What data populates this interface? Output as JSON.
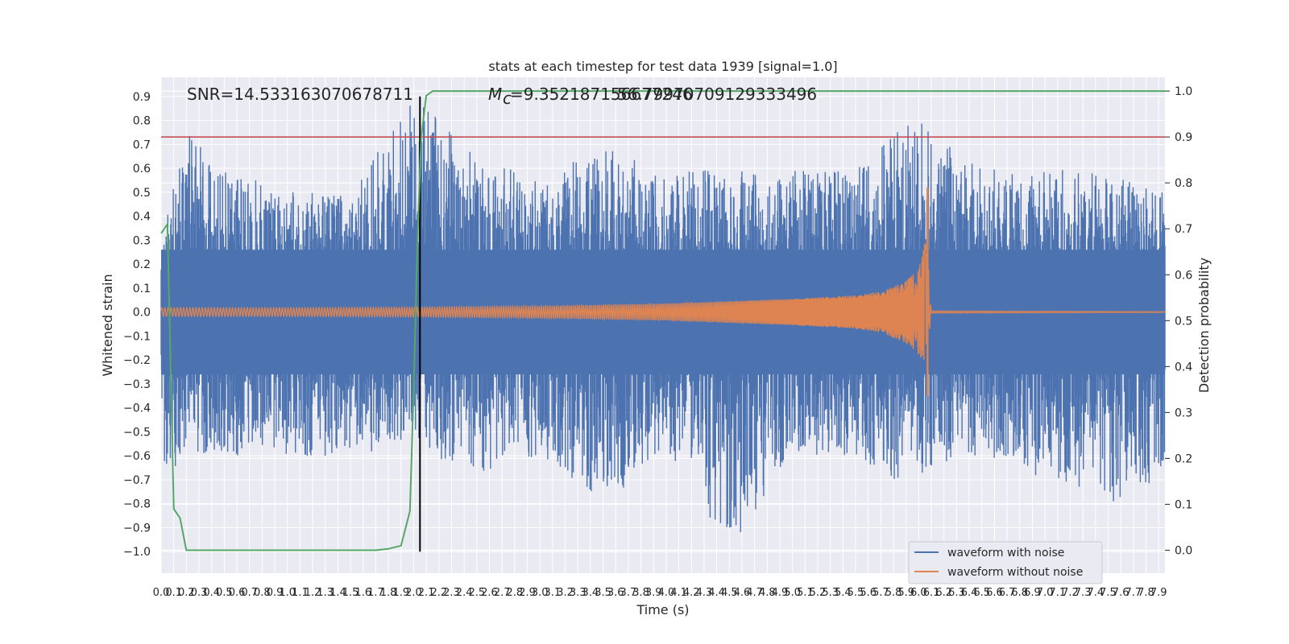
{
  "chart_data": {
    "type": "line",
    "title": "stats at each timestep for test data 1939 [signal=1.0]",
    "xlabel": "Time (s)",
    "ylabel": "Whitened strain",
    "y2label": "Detection probability",
    "xlim": [
      0.0,
      7.95
    ],
    "ylim": [
      -1.09,
      0.98
    ],
    "y2lim": [
      -0.05,
      1.03
    ],
    "xticks": [
      "0.0",
      "0.1",
      "0.2",
      "0.3",
      "0.4",
      "0.5",
      "0.6",
      "0.7",
      "0.8",
      "0.9",
      "1.0",
      "1.1",
      "1.2",
      "1.3",
      "1.4",
      "1.5",
      "1.6",
      "1.7",
      "1.8",
      "1.9",
      "2.0",
      "2.1",
      "2.2",
      "2.3",
      "2.4",
      "2.5",
      "2.6",
      "2.7",
      "2.8",
      "2.9",
      "3.0",
      "3.1",
      "3.2",
      "3.3",
      "3.4",
      "3.5",
      "3.6",
      "3.7",
      "3.8",
      "3.9",
      "4.0",
      "4.1",
      "4.2",
      "4.3",
      "4.4",
      "4.5",
      "4.6",
      "4.7",
      "4.8",
      "4.9",
      "5.0",
      "5.1",
      "5.2",
      "5.3",
      "5.4",
      "5.5",
      "5.6",
      "5.7",
      "5.8",
      "5.9",
      "6.0",
      "6.1",
      "6.2",
      "6.3",
      "6.4",
      "6.5",
      "6.6",
      "6.7",
      "6.8",
      "6.9",
      "7.0",
      "7.1",
      "7.2",
      "7.3",
      "7.4",
      "7.5",
      "7.6",
      "7.7",
      "7.8",
      "7.9"
    ],
    "yticks": [
      "0.9",
      "0.8",
      "0.7",
      "0.6",
      "0.5",
      "0.4",
      "0.3",
      "0.2",
      "0.1",
      "0.0",
      "−0.1",
      "−0.2",
      "−0.3",
      "−0.4",
      "−0.5",
      "−0.6",
      "−0.7",
      "−0.8",
      "−0.9",
      "−1.0"
    ],
    "ytick_values": [
      0.9,
      0.8,
      0.7,
      0.6,
      0.5,
      0.4,
      0.3,
      0.2,
      0.1,
      0.0,
      -0.1,
      -0.2,
      -0.3,
      -0.4,
      -0.5,
      -0.6,
      -0.7,
      -0.8,
      -0.9,
      -1.0
    ],
    "y2ticks": [
      "1.0",
      "0.9",
      "0.8",
      "0.7",
      "0.6",
      "0.5",
      "0.4",
      "0.3",
      "0.2",
      "0.1",
      "0.0"
    ],
    "y2tick_values": [
      1.0,
      0.9,
      0.8,
      0.7,
      0.6,
      0.5,
      0.4,
      0.3,
      0.2,
      0.1,
      0.0
    ],
    "grid": true,
    "legend_position": "lower-right",
    "annotations": {
      "snr": "SNR=14.533163070678711",
      "mc": "=9.352187156677246",
      "mc_symbol": "M",
      "mc_sub": "c",
      "overlap": "56.79970709129333496"
    },
    "threshold": {
      "y2": 0.9,
      "color": "#c44e52"
    },
    "marker_line": {
      "x": 2.05,
      "y": [
        -1.0,
        0.9
      ],
      "color": "#000000"
    },
    "series": [
      {
        "name": "waveform with noise",
        "color": "#4c72b0",
        "envelope": {
          "x": [
            0.0,
            0.2,
            0.5,
            1.0,
            1.5,
            2.0,
            2.5,
            3.0,
            3.5,
            4.0,
            4.5,
            5.0,
            5.5,
            5.8,
            6.0,
            6.1,
            6.5,
            7.0,
            7.5,
            7.95
          ],
          "upper": [
            0.35,
            0.75,
            0.6,
            0.5,
            0.5,
            0.9,
            0.65,
            0.55,
            0.7,
            0.6,
            0.6,
            0.6,
            0.6,
            0.75,
            0.8,
            0.75,
            0.6,
            0.6,
            0.6,
            0.5
          ],
          "lower": [
            -0.7,
            -0.6,
            -0.6,
            -0.6,
            -0.6,
            -0.55,
            -0.7,
            -0.6,
            -0.8,
            -0.6,
            -1.0,
            -0.6,
            -0.6,
            -0.7,
            -0.7,
            -0.65,
            -0.6,
            -0.7,
            -0.8,
            -0.7
          ]
        }
      },
      {
        "name": "waveform without noise",
        "color": "#dd8452",
        "envelope": {
          "x": [
            0.0,
            1.0,
            2.0,
            3.0,
            4.0,
            4.5,
            5.0,
            5.5,
            5.7,
            5.9,
            6.0,
            6.05,
            6.1,
            7.95
          ],
          "amp": [
            0.018,
            0.018,
            0.02,
            0.025,
            0.035,
            0.045,
            0.055,
            0.07,
            0.085,
            0.13,
            0.18,
            0.25,
            0.005,
            0.002
          ]
        }
      },
      {
        "name": "Detection probability",
        "color": "#55a868",
        "axis": "right",
        "x": [
          0.0,
          0.05,
          0.1,
          0.15,
          0.2,
          0.3,
          0.5,
          1.0,
          1.5,
          1.7,
          1.8,
          1.9,
          1.97,
          2.0,
          2.03,
          2.06,
          2.1,
          2.15,
          2.2,
          3.0,
          5.0,
          7.0,
          7.95
        ],
        "y": [
          0.69,
          0.71,
          0.09,
          0.07,
          0.0,
          0.0,
          0.0,
          0.0,
          0.0,
          0.0,
          0.003,
          0.01,
          0.085,
          0.35,
          0.68,
          0.9,
          0.99,
          1.0,
          1.0,
          1.0,
          1.0,
          1.0,
          1.0
        ]
      }
    ]
  }
}
